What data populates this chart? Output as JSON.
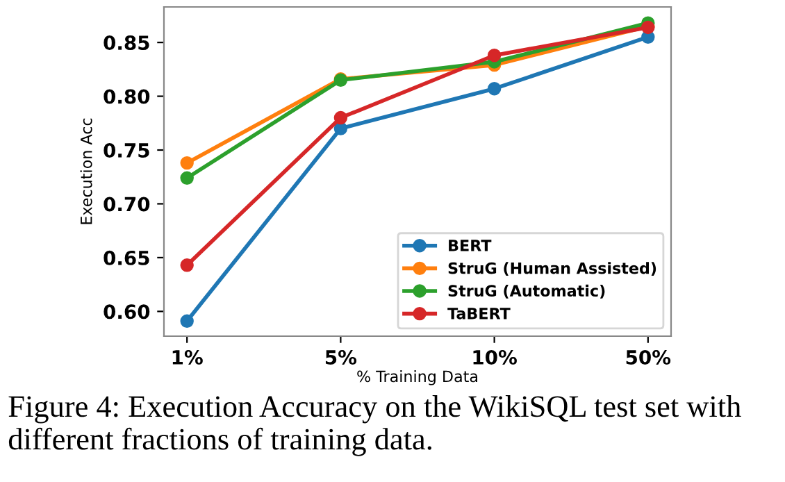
{
  "chart_data": {
    "type": "line",
    "xlabel": "% Training Data",
    "ylabel": "Execution Acc",
    "categories": [
      "1%",
      "5%",
      "10%",
      "50%"
    ],
    "series": [
      {
        "name": "BERT",
        "color": "#1f77b4",
        "values": [
          0.591,
          0.77,
          0.807,
          0.855
        ]
      },
      {
        "name": "StruG (Human Assisted)",
        "color": "#ff7f0e",
        "values": [
          0.738,
          0.816,
          0.829,
          0.865
        ]
      },
      {
        "name": "StruG (Automatic)",
        "color": "#2ca02c",
        "values": [
          0.724,
          0.815,
          0.832,
          0.868
        ]
      },
      {
        "name": "TaBERT",
        "color": "#d62728",
        "values": [
          0.643,
          0.78,
          0.838,
          0.864
        ]
      }
    ],
    "ylim": [
      0.577,
      0.883
    ],
    "yticks": [
      {
        "value": 0.6,
        "label": "0.60"
      },
      0.65,
      {
        "value": 0.7,
        "label": "0.70"
      },
      0.75,
      {
        "value": 0.8,
        "label": "0.80"
      },
      0.85
    ],
    "marker": "circle",
    "line_style": "solid",
    "grid": false,
    "legend": "bottom right",
    "annotations": [
      "Figure 4: Execution Accuracy on the WikiSQL test set with different fractions of training data."
    ]
  }
}
